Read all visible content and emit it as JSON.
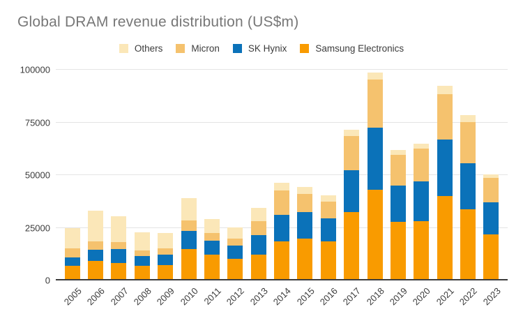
{
  "title": "Global DRAM revenue distribution (US$m)",
  "colors": {
    "samsung": "#F99B00",
    "sk_hynix": "#0B72B9",
    "micron": "#F5C26E",
    "others": "#FBE7B8",
    "gridline": "#E4E4E4",
    "axis": "#3C3C3C",
    "title_text": "#777777",
    "label_text": "#3B3B3B"
  },
  "legend": {
    "items": [
      {
        "label": "Others",
        "color": "#FBE7B8"
      },
      {
        "label": "Micron",
        "color": "#F5C26E"
      },
      {
        "label": "SK Hynix",
        "color": "#0B72B9"
      },
      {
        "label": "Samsung Electronics",
        "color": "#F99B00"
      }
    ]
  },
  "chart_data": {
    "type": "bar",
    "stacked": true,
    "title": "Global DRAM revenue distribution (US$m)",
    "xlabel": "",
    "ylabel": "",
    "ylim": [
      0,
      100000
    ],
    "yticks": [
      0,
      25000,
      50000,
      75000,
      100000
    ],
    "grid": true,
    "legend_position": "top",
    "categories": [
      "2005",
      "2006",
      "2007",
      "2008",
      "2009",
      "2010",
      "2011",
      "2012",
      "2013",
      "2014",
      "2015",
      "2016",
      "2017",
      "2018",
      "2019",
      "2020",
      "2021",
      "2022",
      "2023"
    ],
    "series": [
      {
        "id": "samsung-electronics",
        "name": "Samsung Electronics",
        "color": "#F99B00",
        "values": [
          7000,
          9300,
          8300,
          7000,
          7300,
          14800,
          12200,
          10400,
          12300,
          18500,
          19800,
          18700,
          32600,
          43200,
          27700,
          28200,
          40000,
          33700,
          21700
        ]
      },
      {
        "id": "sk-hynix",
        "name": "SK Hynix",
        "color": "#0B72B9",
        "values": [
          4100,
          5400,
          6700,
          4600,
          4900,
          8600,
          6600,
          6200,
          9100,
          12700,
          12500,
          10700,
          19800,
          29200,
          17300,
          18800,
          26800,
          22100,
          15500
        ]
      },
      {
        "id": "micron",
        "name": "Micron",
        "color": "#F5C26E",
        "values": [
          4100,
          3800,
          3200,
          2600,
          2900,
          5000,
          3600,
          3300,
          6900,
          11600,
          8700,
          7900,
          16200,
          23000,
          14500,
          15600,
          21500,
          19500,
          11600
        ]
      },
      {
        "id": "others",
        "name": "Others",
        "color": "#FBE7B8",
        "values": [
          9800,
          14500,
          12300,
          8500,
          7300,
          10600,
          6800,
          5400,
          6000,
          3700,
          3300,
          3100,
          2800,
          3300,
          2300,
          2300,
          4100,
          3300,
          1500
        ]
      }
    ]
  }
}
